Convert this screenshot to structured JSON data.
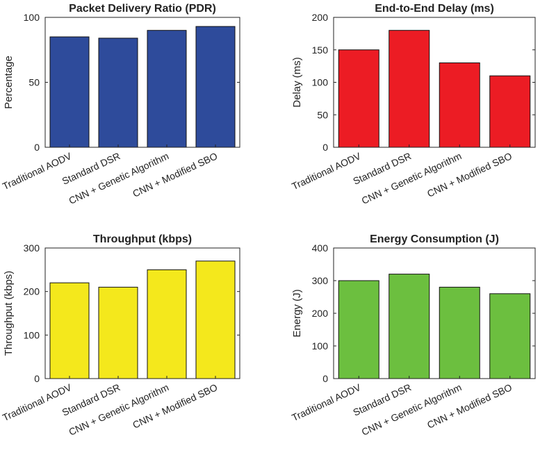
{
  "figure": {
    "colors": {
      "axis": "#222222",
      "background": "#ffffff",
      "bar_edge": "#111111"
    }
  },
  "chart_data": [
    {
      "type": "bar",
      "title": "Packet Delivery Ratio (PDR)",
      "xlabel": "",
      "ylabel": "Percentage",
      "categories": [
        "Traditional AODV",
        "Standard DSR",
        "CNN + Genetic Algorithm",
        "CNN + Modified SBO"
      ],
      "values": [
        85,
        84,
        90,
        93
      ],
      "ylim": [
        0,
        100
      ],
      "yticks": [
        0,
        50,
        100
      ],
      "color": "#2e4b9b",
      "grid": false
    },
    {
      "type": "bar",
      "title": "End-to-End Delay (ms)",
      "xlabel": "",
      "ylabel": "Delay (ms)",
      "categories": [
        "Traditional AODV",
        "Standard DSR",
        "CNN + Genetic Algorithm",
        "CNN + Modified SBO"
      ],
      "values": [
        150,
        180,
        130,
        110
      ],
      "ylim": [
        0,
        200
      ],
      "yticks": [
        0,
        50,
        100,
        150,
        200
      ],
      "color": "#ec1c24",
      "grid": false
    },
    {
      "type": "bar",
      "title": "Throughput (kbps)",
      "xlabel": "",
      "ylabel": "Throughput (kbps)",
      "categories": [
        "Traditional AODV",
        "Standard DSR",
        "CNN + Genetic Algorithm",
        "CNN + Modified SBO"
      ],
      "values": [
        220,
        210,
        250,
        270
      ],
      "ylim": [
        0,
        300
      ],
      "yticks": [
        0,
        100,
        200,
        300
      ],
      "color": "#f4e81c",
      "grid": false
    },
    {
      "type": "bar",
      "title": "Energy Consumption (J)",
      "xlabel": "",
      "ylabel": "Energy (J)",
      "categories": [
        "Traditional AODV",
        "Standard DSR",
        "CNN + Genetic Algorithm",
        "CNN + Modified SBO"
      ],
      "values": [
        300,
        320,
        280,
        260
      ],
      "ylim": [
        0,
        400
      ],
      "yticks": [
        0,
        100,
        200,
        300,
        400
      ],
      "color": "#6cbf3f",
      "grid": false
    }
  ]
}
